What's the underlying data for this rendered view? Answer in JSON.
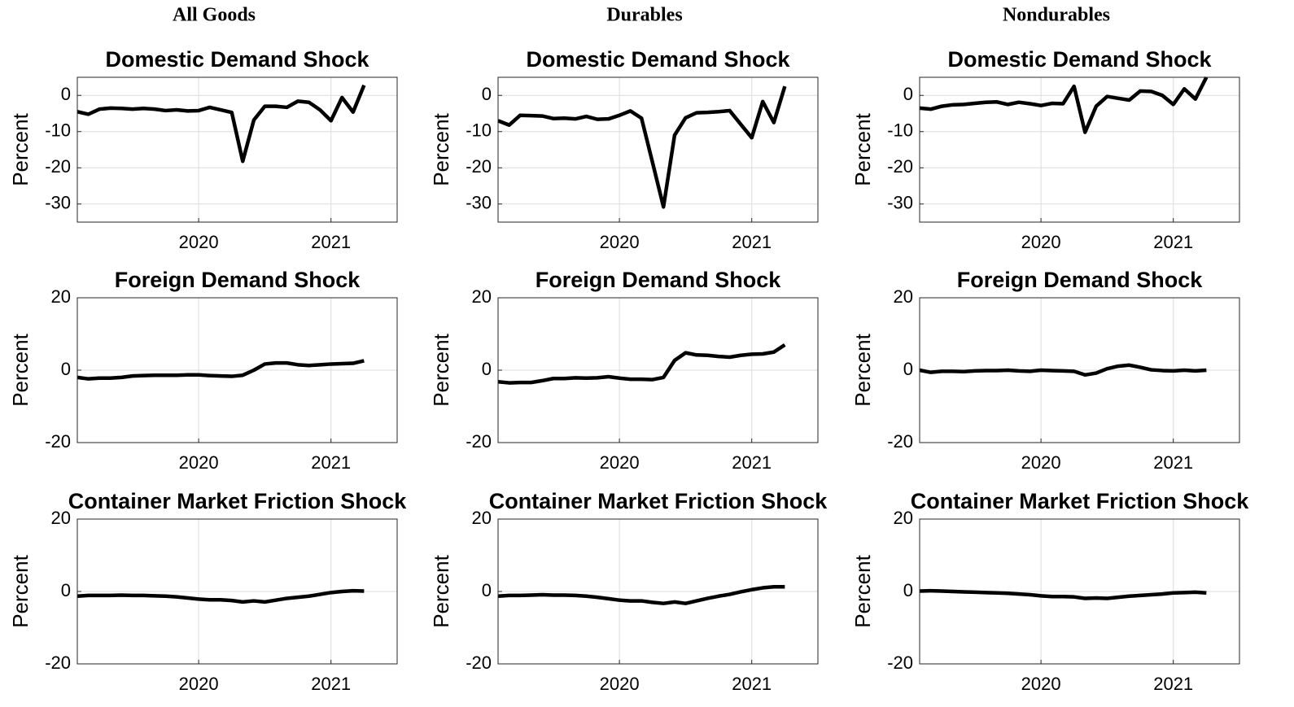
{
  "column_titles": [
    "All Goods",
    "Durables",
    "Nondurables"
  ],
  "chart_data": [
    {
      "type": "line",
      "title": "Domestic Demand Shock",
      "ylabel": "Percent",
      "grid": true,
      "x": [
        2019.083,
        2019.167,
        2019.25,
        2019.333,
        2019.417,
        2019.5,
        2019.583,
        2019.667,
        2019.75,
        2019.833,
        2019.917,
        2020,
        2020.083,
        2020.167,
        2020.25,
        2020.333,
        2020.417,
        2020.5,
        2020.583,
        2020.667,
        2020.75,
        2020.833,
        2020.917,
        2021,
        2021.083,
        2021.167,
        2021.25
      ],
      "series": [
        {
          "color": "#000000",
          "values": [
            -4.5,
            -5.2,
            -3.8,
            -3.5,
            -3.6,
            -3.8,
            -3.6,
            -3.8,
            -4.2,
            -4.0,
            -4.3,
            -4.2,
            -3.3,
            -4.0,
            -4.7,
            -18.2,
            -6.8,
            -3.0,
            -3.0,
            -3.3,
            -1.6,
            -1.9,
            -4.0,
            -7.0,
            -0.6,
            -4.6,
            2.8
          ]
        }
      ],
      "xlim": [
        2019.083,
        2021.5
      ],
      "xticks": [
        2020,
        2021
      ],
      "ylim": [
        -35,
        5
      ],
      "yticks": [
        -30,
        -20,
        -10,
        0
      ]
    },
    {
      "type": "line",
      "title": "Domestic Demand Shock",
      "ylabel": "Percent",
      "grid": true,
      "x": [
        2019.083,
        2019.167,
        2019.25,
        2019.333,
        2019.417,
        2019.5,
        2019.583,
        2019.667,
        2019.75,
        2019.833,
        2019.917,
        2020,
        2020.083,
        2020.167,
        2020.25,
        2020.333,
        2020.417,
        2020.5,
        2020.583,
        2020.667,
        2020.75,
        2020.833,
        2020.917,
        2021,
        2021.083,
        2021.167,
        2021.25
      ],
      "series": [
        {
          "color": "#000000",
          "values": [
            -7.0,
            -8.2,
            -5.5,
            -5.6,
            -5.7,
            -6.4,
            -6.3,
            -6.5,
            -5.8,
            -6.6,
            -6.5,
            -5.5,
            -4.3,
            -6.3,
            -18.5,
            -30.8,
            -11.0,
            -6.2,
            -4.8,
            -4.7,
            -4.5,
            -4.2,
            -8.0,
            -11.7,
            -1.7,
            -7.5,
            2.5
          ]
        }
      ],
      "xlim": [
        2019.083,
        2021.5
      ],
      "xticks": [
        2020,
        2021
      ],
      "ylim": [
        -35,
        5
      ],
      "yticks": [
        -30,
        -20,
        -10,
        0
      ]
    },
    {
      "type": "line",
      "title": "Domestic Demand Shock",
      "ylabel": "Percent",
      "grid": true,
      "x": [
        2019.083,
        2019.167,
        2019.25,
        2019.333,
        2019.417,
        2019.5,
        2019.583,
        2019.667,
        2019.75,
        2019.833,
        2019.917,
        2020,
        2020.083,
        2020.167,
        2020.25,
        2020.333,
        2020.417,
        2020.5,
        2020.583,
        2020.667,
        2020.75,
        2020.833,
        2020.917,
        2021,
        2021.083,
        2021.167,
        2021.25
      ],
      "series": [
        {
          "color": "#000000",
          "values": [
            -3.5,
            -3.8,
            -3.0,
            -2.6,
            -2.5,
            -2.2,
            -1.9,
            -1.8,
            -2.5,
            -1.9,
            -2.3,
            -2.8,
            -2.2,
            -2.3,
            2.5,
            -10.2,
            -3.0,
            -0.3,
            -0.8,
            -1.3,
            1.2,
            1.1,
            0.0,
            -2.5,
            1.8,
            -1.0,
            5.0
          ]
        }
      ],
      "xlim": [
        2019.083,
        2021.5
      ],
      "xticks": [
        2020,
        2021
      ],
      "ylim": [
        -35,
        5
      ],
      "yticks": [
        -30,
        -20,
        -10,
        0
      ]
    },
    {
      "type": "line",
      "title": "Foreign Demand Shock",
      "ylabel": "Percent",
      "grid": true,
      "x": [
        2019.083,
        2019.167,
        2019.25,
        2019.333,
        2019.417,
        2019.5,
        2019.583,
        2019.667,
        2019.75,
        2019.833,
        2019.917,
        2020,
        2020.083,
        2020.167,
        2020.25,
        2020.333,
        2020.417,
        2020.5,
        2020.583,
        2020.667,
        2020.75,
        2020.833,
        2020.917,
        2021,
        2021.083,
        2021.167,
        2021.25
      ],
      "series": [
        {
          "color": "#000000",
          "values": [
            -2.0,
            -2.4,
            -2.2,
            -2.2,
            -2.0,
            -1.6,
            -1.5,
            -1.4,
            -1.4,
            -1.4,
            -1.3,
            -1.3,
            -1.5,
            -1.6,
            -1.7,
            -1.4,
            0.0,
            1.7,
            2.0,
            2.0,
            1.5,
            1.3,
            1.5,
            1.7,
            1.8,
            1.9,
            2.6
          ]
        }
      ],
      "xlim": [
        2019.083,
        2021.5
      ],
      "xticks": [
        2020,
        2021
      ],
      "ylim": [
        -20,
        20
      ],
      "yticks": [
        -20,
        0,
        20
      ]
    },
    {
      "type": "line",
      "title": "Foreign Demand Shock",
      "ylabel": "Percent",
      "grid": true,
      "x": [
        2019.083,
        2019.167,
        2019.25,
        2019.333,
        2019.417,
        2019.5,
        2019.583,
        2019.667,
        2019.75,
        2019.833,
        2019.917,
        2020,
        2020.083,
        2020.167,
        2020.25,
        2020.333,
        2020.417,
        2020.5,
        2020.583,
        2020.667,
        2020.75,
        2020.833,
        2020.917,
        2021,
        2021.083,
        2021.167,
        2021.25
      ],
      "series": [
        {
          "color": "#000000",
          "values": [
            -3.2,
            -3.5,
            -3.4,
            -3.4,
            -2.9,
            -2.3,
            -2.3,
            -2.1,
            -2.2,
            -2.1,
            -1.8,
            -2.2,
            -2.5,
            -2.5,
            -2.6,
            -2.0,
            2.7,
            4.8,
            4.2,
            4.1,
            3.8,
            3.6,
            4.1,
            4.4,
            4.5,
            5.0,
            7.0
          ]
        }
      ],
      "xlim": [
        2019.083,
        2021.5
      ],
      "xticks": [
        2020,
        2021
      ],
      "ylim": [
        -20,
        20
      ],
      "yticks": [
        -20,
        0,
        20
      ]
    },
    {
      "type": "line",
      "title": "Foreign Demand Shock",
      "ylabel": "Percent",
      "grid": true,
      "x": [
        2019.083,
        2019.167,
        2019.25,
        2019.333,
        2019.417,
        2019.5,
        2019.583,
        2019.667,
        2019.75,
        2019.833,
        2019.917,
        2020,
        2020.083,
        2020.167,
        2020.25,
        2020.333,
        2020.417,
        2020.5,
        2020.583,
        2020.667,
        2020.75,
        2020.833,
        2020.917,
        2021,
        2021.083,
        2021.167,
        2021.25
      ],
      "series": [
        {
          "color": "#000000",
          "values": [
            0.0,
            -0.6,
            -0.3,
            -0.3,
            -0.4,
            -0.2,
            -0.1,
            -0.1,
            0.0,
            -0.2,
            -0.3,
            0.0,
            -0.1,
            -0.2,
            -0.3,
            -1.3,
            -0.8,
            0.4,
            1.1,
            1.4,
            0.8,
            0.1,
            -0.1,
            -0.2,
            0.0,
            -0.2,
            0.0
          ]
        }
      ],
      "xlim": [
        2019.083,
        2021.5
      ],
      "xticks": [
        2020,
        2021
      ],
      "ylim": [
        -20,
        20
      ],
      "yticks": [
        -20,
        0,
        20
      ]
    },
    {
      "type": "line",
      "title": "Container Market Friction Shock",
      "ylabel": "Percent",
      "grid": true,
      "x": [
        2019.083,
        2019.167,
        2019.25,
        2019.333,
        2019.417,
        2019.5,
        2019.583,
        2019.667,
        2019.75,
        2019.833,
        2019.917,
        2020,
        2020.083,
        2020.167,
        2020.25,
        2020.333,
        2020.417,
        2020.5,
        2020.583,
        2020.667,
        2020.75,
        2020.833,
        2020.917,
        2021,
        2021.083,
        2021.167,
        2021.25
      ],
      "series": [
        {
          "color": "#000000",
          "values": [
            -1.3,
            -1.1,
            -1.1,
            -1.1,
            -1.0,
            -1.1,
            -1.1,
            -1.2,
            -1.3,
            -1.5,
            -1.8,
            -2.1,
            -2.3,
            -2.3,
            -2.5,
            -2.9,
            -2.6,
            -2.9,
            -2.4,
            -1.9,
            -1.6,
            -1.3,
            -0.8,
            -0.3,
            0.0,
            0.2,
            0.1
          ]
        }
      ],
      "xlim": [
        2019.083,
        2021.5
      ],
      "xticks": [
        2020,
        2021
      ],
      "ylim": [
        -20,
        20
      ],
      "yticks": [
        -20,
        0,
        20
      ]
    },
    {
      "type": "line",
      "title": "Container Market Friction Shock",
      "ylabel": "Percent",
      "grid": true,
      "x": [
        2019.083,
        2019.167,
        2019.25,
        2019.333,
        2019.417,
        2019.5,
        2019.583,
        2019.667,
        2019.75,
        2019.833,
        2019.917,
        2020,
        2020.083,
        2020.167,
        2020.25,
        2020.333,
        2020.417,
        2020.5,
        2020.583,
        2020.667,
        2020.75,
        2020.833,
        2020.917,
        2021,
        2021.083,
        2021.167,
        2021.25
      ],
      "series": [
        {
          "color": "#000000",
          "values": [
            -1.3,
            -1.1,
            -1.1,
            -1.0,
            -0.9,
            -1.0,
            -1.0,
            -1.1,
            -1.3,
            -1.6,
            -2.0,
            -2.4,
            -2.6,
            -2.6,
            -3.0,
            -3.3,
            -2.9,
            -3.3,
            -2.6,
            -1.9,
            -1.3,
            -0.8,
            -0.1,
            0.5,
            1.0,
            1.3,
            1.3
          ]
        }
      ],
      "xlim": [
        2019.083,
        2021.5
      ],
      "xticks": [
        2020,
        2021
      ],
      "ylim": [
        -20,
        20
      ],
      "yticks": [
        -20,
        0,
        20
      ]
    },
    {
      "type": "line",
      "title": "Container Market Friction Shock",
      "ylabel": "Percent",
      "grid": true,
      "x": [
        2019.083,
        2019.167,
        2019.25,
        2019.333,
        2019.417,
        2019.5,
        2019.583,
        2019.667,
        2019.75,
        2019.833,
        2019.917,
        2020,
        2020.083,
        2020.167,
        2020.25,
        2020.333,
        2020.417,
        2020.5,
        2020.583,
        2020.667,
        2020.75,
        2020.833,
        2020.917,
        2021,
        2021.083,
        2021.167,
        2021.25
      ],
      "series": [
        {
          "color": "#000000",
          "values": [
            0.1,
            0.2,
            0.1,
            0.0,
            -0.1,
            -0.2,
            -0.3,
            -0.4,
            -0.5,
            -0.7,
            -0.9,
            -1.2,
            -1.4,
            -1.4,
            -1.5,
            -1.9,
            -1.8,
            -1.9,
            -1.6,
            -1.3,
            -1.1,
            -0.9,
            -0.7,
            -0.4,
            -0.3,
            -0.2,
            -0.4
          ]
        }
      ],
      "xlim": [
        2019.083,
        2021.5
      ],
      "xticks": [
        2020,
        2021
      ],
      "ylim": [
        -20,
        20
      ],
      "yticks": [
        -20,
        0,
        20
      ]
    }
  ]
}
